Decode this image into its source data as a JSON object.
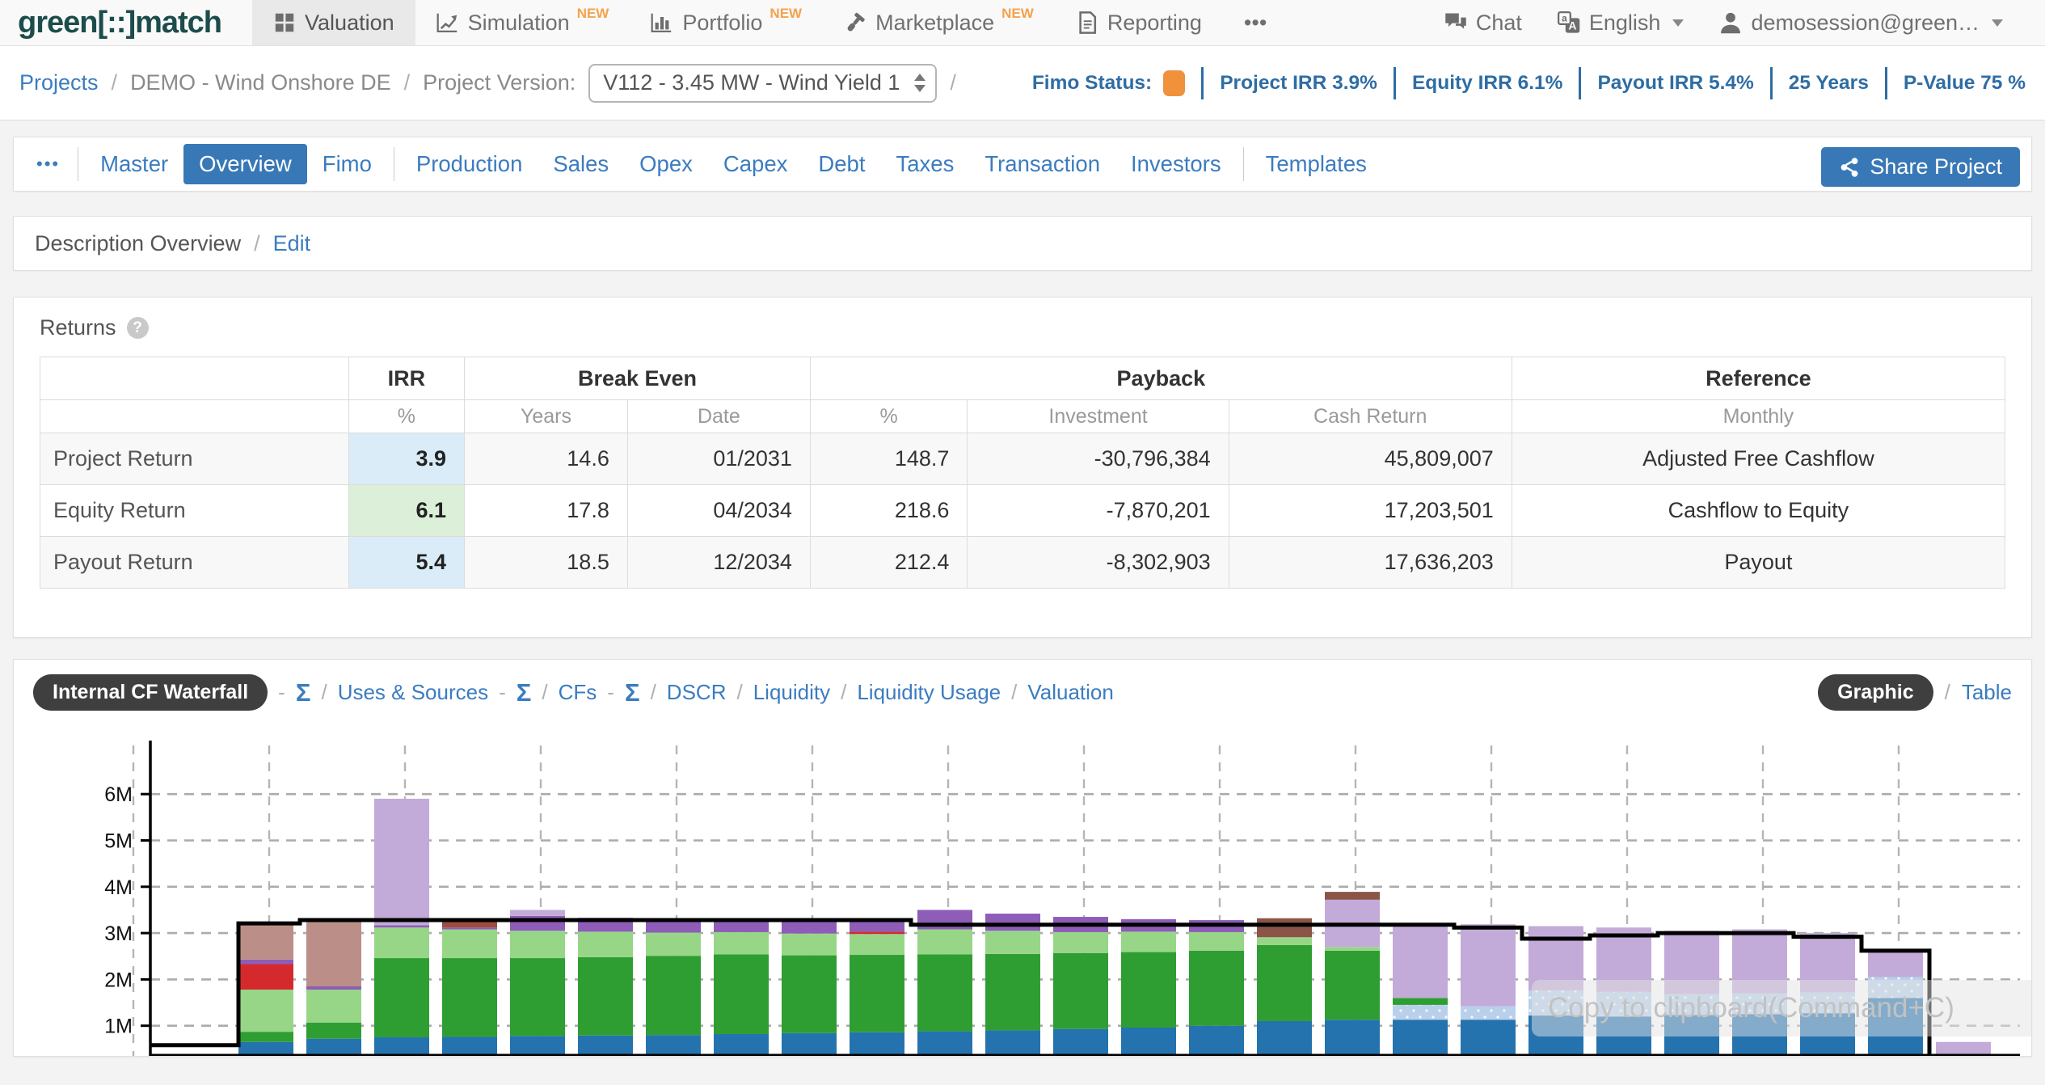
{
  "nav": {
    "logo_text": "green[::]match",
    "items": [
      {
        "label": "Valuation",
        "icon": "grid-icon",
        "active": true
      },
      {
        "label": "Simulation",
        "icon": "line-chart-icon",
        "badge": "NEW"
      },
      {
        "label": "Portfolio",
        "icon": "bar-chart-icon",
        "badge": "NEW"
      },
      {
        "label": "Marketplace",
        "icon": "gavel-icon",
        "badge": "NEW"
      },
      {
        "label": "Reporting",
        "icon": "report-icon"
      },
      {
        "label": "•••",
        "icon": "ellipsis-icon"
      }
    ],
    "right_items": [
      {
        "label": "Chat",
        "icon": "chat-icon"
      },
      {
        "label": "English",
        "icon": "translate-icon",
        "caret": true
      },
      {
        "label": "demosession@green…",
        "icon": "user-icon",
        "caret": true
      }
    ]
  },
  "breadcrumb": {
    "project_link": "Projects",
    "separator": "/",
    "project_name": "DEMO - Wind Onshore DE",
    "version_label": "Project Version:",
    "version_value": "V112 - 3.45 MW - Wind Yield 1"
  },
  "status_bar": {
    "fimo_label": "Fimo Status:",
    "fimo_color": "#f0913c",
    "stats": [
      "Project IRR 3.9%",
      "Equity IRR 6.1%",
      "Payout IRR 5.4%",
      "25 Years",
      "P-Value 75 %"
    ]
  },
  "tabs": {
    "overflow": "•••",
    "items": [
      {
        "label": "Master"
      },
      {
        "label": "Overview",
        "active": true
      },
      {
        "label": "Fimo",
        "divider_after": true
      },
      {
        "label": "Production"
      },
      {
        "label": "Sales"
      },
      {
        "label": "Opex"
      },
      {
        "label": "Capex"
      },
      {
        "label": "Debt"
      },
      {
        "label": "Taxes"
      },
      {
        "label": "Transaction"
      },
      {
        "label": "Investors",
        "divider_after": true
      },
      {
        "label": "Templates"
      }
    ],
    "share_label": "Share Project"
  },
  "description": {
    "title": "Description Overview",
    "separator": "/",
    "edit_label": "Edit"
  },
  "returns": {
    "title": "Returns",
    "help_glyph": "?",
    "table": {
      "groups": [
        {
          "label": "",
          "span": 1
        },
        {
          "label": "IRR",
          "span": 1
        },
        {
          "label": "Break Even",
          "span": 2
        },
        {
          "label": "Payback",
          "span": 3
        },
        {
          "label": "Reference",
          "span": 1
        }
      ],
      "subheaders": [
        "",
        "%",
        "Years",
        "Date",
        "%",
        "Investment",
        "Cash Return",
        "Monthly"
      ],
      "rows": [
        {
          "label": "Project Return",
          "irr": "3.9",
          "irr_bg": "#d9ecf7",
          "years": "14.6",
          "date": "01/2031",
          "pct": "148.7",
          "investment": "-30,796,384",
          "cash_return": "45,809,007",
          "reference": "Adjusted Free Cashflow"
        },
        {
          "label": "Equity Return",
          "irr": "6.1",
          "irr_bg": "#dcefd9",
          "years": "17.8",
          "date": "04/2034",
          "pct": "218.6",
          "investment": "-7,870,201",
          "cash_return": "17,203,501",
          "reference": "Cashflow to Equity"
        },
        {
          "label": "Payout Return",
          "irr": "5.4",
          "irr_bg": "#d9ecf7",
          "years": "18.5",
          "date": "12/2034",
          "pct": "212.4",
          "investment": "-8,302,903",
          "cash_return": "17,636,203",
          "reference": "Payout"
        }
      ]
    }
  },
  "chart_section": {
    "dash": "-",
    "slash": "/",
    "nav": [
      {
        "type": "pill",
        "label": "Internal CF Waterfall"
      },
      {
        "type": "dash"
      },
      {
        "type": "sigma",
        "label": "Σ"
      },
      {
        "type": "slash"
      },
      {
        "type": "link",
        "label": "Uses & Sources"
      },
      {
        "type": "dash"
      },
      {
        "type": "sigma",
        "label": "Σ"
      },
      {
        "type": "slash"
      },
      {
        "type": "link",
        "label": "CFs"
      },
      {
        "type": "dash"
      },
      {
        "type": "sigma",
        "label": "Σ"
      },
      {
        "type": "slash"
      },
      {
        "type": "link",
        "label": "DSCR"
      },
      {
        "type": "slash"
      },
      {
        "type": "link",
        "label": "Liquidity"
      },
      {
        "type": "slash"
      },
      {
        "type": "link",
        "label": "Liquidity Usage"
      },
      {
        "type": "slash"
      },
      {
        "type": "link",
        "label": "Valuation"
      }
    ],
    "view_toggle": {
      "active": "Graphic",
      "inactive": "Table"
    },
    "watermark": "Copy to clipboard(Command+C)"
  },
  "chart_data": {
    "type": "bar",
    "stacked": true,
    "title": "Internal CF Waterfall",
    "y_unit": "M",
    "ytick_labels": [
      "1M",
      "2M",
      "3M",
      "4M",
      "5M",
      "6M"
    ],
    "ylim": [
      0,
      6.6
    ],
    "grid": "dashed",
    "legend": "none",
    "series_colors": {
      "blue": "#2473ae",
      "dkgreen": "#2f9e32",
      "ltgreen": "#98d687",
      "red": "#d42a2e",
      "purple": "#8e5db8",
      "lavender": "#c2abd9",
      "mauve": "#bb8f87",
      "maroon": "#9e4b40",
      "brown": "#8a5547",
      "ltblue": "#b9d0ea",
      "line": "#000000"
    },
    "bars": [
      {
        "segments": [
          [
            "blue",
            0.65
          ],
          [
            "dkgreen",
            0.22
          ],
          [
            "ltgreen",
            0.91
          ],
          [
            "red",
            0.55
          ],
          [
            "purple",
            0.1
          ],
          [
            "mauve",
            0.79
          ]
        ]
      },
      {
        "segments": [
          [
            "blue",
            0.72
          ],
          [
            "dkgreen",
            0.35
          ],
          [
            "ltgreen",
            0.71
          ],
          [
            "purple",
            0.07
          ],
          [
            "mauve",
            1.42
          ]
        ]
      },
      {
        "segments": [
          [
            "blue",
            0.75
          ],
          [
            "dkgreen",
            1.71
          ],
          [
            "ltgreen",
            0.66
          ],
          [
            "purple",
            0.05
          ],
          [
            "lavender",
            2.73
          ]
        ]
      },
      {
        "segments": [
          [
            "blue",
            0.76
          ],
          [
            "dkgreen",
            1.7
          ],
          [
            "ltgreen",
            0.62
          ],
          [
            "purple",
            0.04
          ],
          [
            "maroon",
            0.13
          ]
        ]
      },
      {
        "segments": [
          [
            "blue",
            0.78
          ],
          [
            "dkgreen",
            1.68
          ],
          [
            "ltgreen",
            0.59
          ],
          [
            "purple",
            0.32
          ],
          [
            "lavender",
            0.13
          ]
        ]
      },
      {
        "segments": [
          [
            "blue",
            0.79
          ],
          [
            "dkgreen",
            1.69
          ],
          [
            "ltgreen",
            0.55
          ],
          [
            "purple",
            0.3
          ]
        ]
      },
      {
        "segments": [
          [
            "blue",
            0.8
          ],
          [
            "dkgreen",
            1.71
          ],
          [
            "ltgreen",
            0.5
          ],
          [
            "purple",
            0.26
          ]
        ]
      },
      {
        "segments": [
          [
            "blue",
            0.82
          ],
          [
            "dkgreen",
            1.72
          ],
          [
            "ltgreen",
            0.48
          ],
          [
            "purple",
            0.26
          ]
        ]
      },
      {
        "segments": [
          [
            "blue",
            0.84
          ],
          [
            "dkgreen",
            1.68
          ],
          [
            "ltgreen",
            0.47
          ],
          [
            "purple",
            0.27
          ],
          [
            "lavender",
            0.04
          ]
        ]
      },
      {
        "segments": [
          [
            "blue",
            0.86
          ],
          [
            "dkgreen",
            1.67
          ],
          [
            "ltgreen",
            0.45
          ],
          [
            "red",
            0.05
          ],
          [
            "purple",
            0.27
          ]
        ]
      },
      {
        "segments": [
          [
            "blue",
            0.88
          ],
          [
            "dkgreen",
            1.66
          ],
          [
            "ltgreen",
            0.54
          ],
          [
            "purple",
            0.42
          ]
        ]
      },
      {
        "segments": [
          [
            "blue",
            0.9
          ],
          [
            "dkgreen",
            1.65
          ],
          [
            "ltgreen",
            0.5
          ],
          [
            "purple",
            0.37
          ]
        ]
      },
      {
        "segments": [
          [
            "blue",
            0.93
          ],
          [
            "dkgreen",
            1.64
          ],
          [
            "ltgreen",
            0.45
          ],
          [
            "purple",
            0.33
          ]
        ]
      },
      {
        "segments": [
          [
            "blue",
            0.96
          ],
          [
            "dkgreen",
            1.63
          ],
          [
            "ltgreen",
            0.44
          ],
          [
            "purple",
            0.27
          ]
        ]
      },
      {
        "segments": [
          [
            "blue",
            1.0
          ],
          [
            "dkgreen",
            1.62
          ],
          [
            "ltgreen",
            0.4
          ],
          [
            "purple",
            0.26
          ]
        ]
      },
      {
        "segments": [
          [
            "blue",
            1.1
          ],
          [
            "dkgreen",
            1.64
          ],
          [
            "ltgreen",
            0.17
          ],
          [
            "brown",
            0.41
          ]
        ]
      },
      {
        "segments": [
          [
            "blue",
            1.13
          ],
          [
            "dkgreen",
            1.49
          ],
          [
            "ltgreen",
            0.08
          ],
          [
            "lavender",
            1.02
          ],
          [
            "brown",
            0.17
          ]
        ]
      },
      {
        "segments": [
          [
            "blue",
            1.13
          ],
          [
            "ltblue",
            0.32
          ],
          [
            "dkgreen",
            0.15
          ],
          [
            "lavender",
            1.62
          ]
        ]
      },
      {
        "segments": [
          [
            "blue",
            1.13
          ],
          [
            "ltblue",
            0.29
          ],
          [
            "lavender",
            1.77
          ]
        ]
      },
      {
        "segments": [
          [
            "blue",
            1.22
          ],
          [
            "ltblue",
            0.54
          ],
          [
            "lavender",
            1.39
          ]
        ]
      },
      {
        "segments": [
          [
            "blue",
            1.2
          ],
          [
            "ltblue",
            0.53
          ],
          [
            "lavender",
            1.39
          ]
        ]
      },
      {
        "segments": [
          [
            "blue",
            1.23
          ],
          [
            "ltblue",
            0.45
          ],
          [
            "lavender",
            1.37
          ]
        ]
      },
      {
        "segments": [
          [
            "blue",
            1.25
          ],
          [
            "ltblue",
            0.45
          ],
          [
            "lavender",
            1.38
          ]
        ]
      },
      {
        "segments": [
          [
            "blue",
            1.27
          ],
          [
            "ltblue",
            0.45
          ],
          [
            "lavender",
            1.28
          ]
        ]
      },
      {
        "segments": [
          [
            "blue",
            1.6
          ],
          [
            "ltblue",
            0.45
          ],
          [
            "lavender",
            0.55
          ]
        ]
      },
      {
        "segments": [
          [
            "lavender",
            0.65
          ]
        ]
      }
    ],
    "overlay_line": {
      "name": "cumulative-cashflow-line",
      "color": "#000000",
      "pre_value": 0.58,
      "values": [
        3.21,
        3.28,
        3.28,
        3.28,
        3.28,
        3.28,
        3.28,
        3.28,
        3.28,
        3.28,
        3.18,
        3.18,
        3.18,
        3.18,
        3.18,
        3.18,
        3.18,
        3.18,
        3.12,
        2.88,
        2.95,
        3.0,
        3.0,
        2.92,
        2.62
      ],
      "end_value": 0.35
    },
    "baseline_rule": {
      "value": 0.35,
      "color": "#000000"
    }
  }
}
